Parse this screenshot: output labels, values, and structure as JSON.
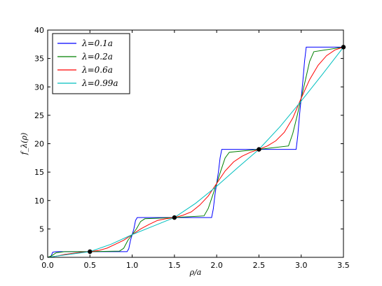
{
  "chart_data": {
    "type": "line",
    "title": "",
    "xlabel": "ρ/a",
    "ylabel": "f_λ(ρ)",
    "xlim": [
      0.0,
      3.5
    ],
    "ylim": [
      0,
      40
    ],
    "xticks": [
      "0.0",
      "0.5",
      "1.0",
      "1.5",
      "2.0",
      "2.5",
      "3.0",
      "3.5"
    ],
    "yticks": [
      "0",
      "5",
      "10",
      "15",
      "20",
      "25",
      "30",
      "35",
      "40"
    ],
    "legend_position": "top-left",
    "grid": false,
    "series": [
      {
        "name": "λ=0.1a",
        "color": "#0000ff",
        "x": [
          0.0,
          0.04,
          0.06,
          0.1,
          0.5,
          0.94,
          0.96,
          0.98,
          1.0,
          1.02,
          1.04,
          1.06,
          1.5,
          1.94,
          1.96,
          1.98,
          2.0,
          2.02,
          2.04,
          2.06,
          2.5,
          2.94,
          2.96,
          2.98,
          3.0,
          3.02,
          3.04,
          3.06,
          3.5
        ],
        "y": [
          0.0,
          0.2,
          0.9,
          1.0,
          1.0,
          1.0,
          1.5,
          3.0,
          4.0,
          5.0,
          6.5,
          7.0,
          7.0,
          7.0,
          8.5,
          11.0,
          13.0,
          15.0,
          17.5,
          19.0,
          19.0,
          19.0,
          21.5,
          25.0,
          28.0,
          31.0,
          34.5,
          37.0,
          37.0
        ]
      },
      {
        "name": "λ=0.2a",
        "color": "#008000",
        "x": [
          0.0,
          0.05,
          0.1,
          0.2,
          0.5,
          0.85,
          0.9,
          0.95,
          1.0,
          1.05,
          1.1,
          1.15,
          1.5,
          1.85,
          1.9,
          1.95,
          2.0,
          2.05,
          2.1,
          2.15,
          2.5,
          2.85,
          2.9,
          2.95,
          3.0,
          3.05,
          3.1,
          3.15,
          3.5
        ],
        "y": [
          0.0,
          0.3,
          0.8,
          1.0,
          1.0,
          1.1,
          1.6,
          3.0,
          4.0,
          5.0,
          6.3,
          6.8,
          7.0,
          7.3,
          8.6,
          10.8,
          13.0,
          15.3,
          17.5,
          18.5,
          19.0,
          19.6,
          21.8,
          24.8,
          28.0,
          31.2,
          34.5,
          36.2,
          37.0
        ]
      },
      {
        "name": "λ=0.6a",
        "color": "#ff0000",
        "x": [
          0.0,
          0.1,
          0.2,
          0.3,
          0.4,
          0.5,
          0.6,
          0.7,
          0.8,
          0.9,
          1.0,
          1.1,
          1.2,
          1.3,
          1.4,
          1.5,
          1.6,
          1.7,
          1.8,
          1.9,
          2.0,
          2.1,
          2.2,
          2.3,
          2.4,
          2.5,
          2.6,
          2.7,
          2.8,
          2.9,
          3.0,
          3.1,
          3.2,
          3.3,
          3.4,
          3.5
        ],
        "y": [
          0.0,
          0.2,
          0.5,
          0.7,
          0.9,
          1.0,
          1.2,
          1.6,
          2.3,
          3.0,
          4.0,
          5.0,
          5.8,
          6.5,
          6.8,
          7.0,
          7.4,
          8.0,
          9.2,
          10.8,
          13.0,
          15.2,
          16.8,
          17.8,
          18.5,
          19.0,
          19.6,
          20.5,
          22.0,
          24.5,
          28.0,
          31.3,
          33.8,
          35.5,
          36.5,
          37.0
        ]
      },
      {
        "name": "λ=0.99a",
        "color": "#00bfbf",
        "x": [
          0.0,
          0.25,
          0.5,
          0.75,
          1.0,
          1.25,
          1.5,
          1.75,
          2.0,
          2.25,
          2.5,
          2.75,
          3.0,
          3.25,
          3.5
        ],
        "y": [
          0.0,
          0.5,
          1.0,
          2.3,
          4.0,
          5.5,
          7.0,
          9.5,
          12.5,
          15.8,
          19.0,
          23.0,
          27.5,
          32.2,
          37.0
        ]
      }
    ],
    "markers": {
      "color": "#000000",
      "x": [
        0.5,
        1.5,
        2.5,
        3.5
      ],
      "y": [
        1,
        7,
        19,
        37
      ]
    }
  }
}
